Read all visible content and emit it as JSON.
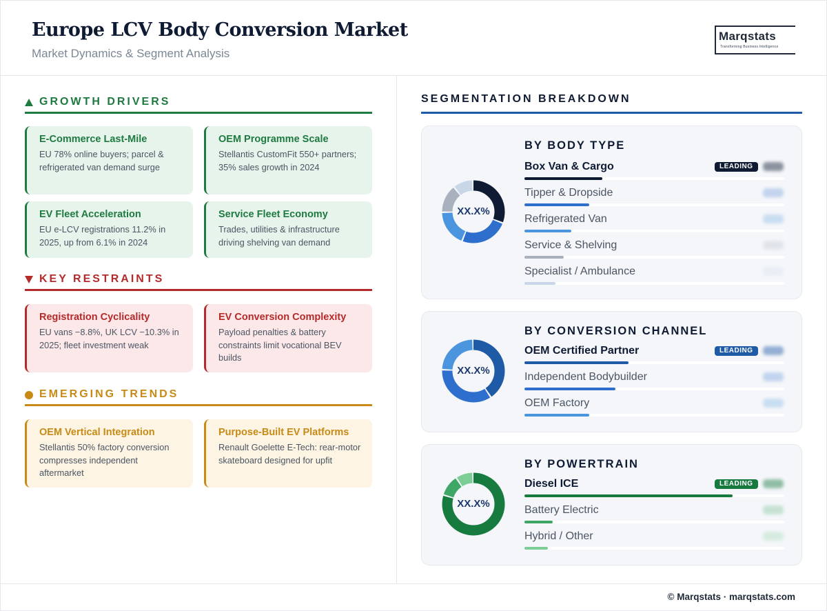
{
  "header": {
    "title": "Europe LCV Body Conversion Market",
    "subtitle": "Market Dynamics & Segment Analysis",
    "logo_name": "Marqstats",
    "logo_tagline": "Transforming Business Intelligence"
  },
  "growth_drivers": {
    "heading": "GROWTH DRIVERS",
    "color": "#1e7a40",
    "cards": [
      {
        "title": "E-Commerce Last-Mile",
        "text": "EU 78% online buyers; parcel & refrigerated van demand surge"
      },
      {
        "title": "OEM Programme Scale",
        "text": "Stellantis CustomFit 550+ partners; 35% sales growth in 2024"
      },
      {
        "title": "EV Fleet Acceleration",
        "text": "EU e-LCV registrations 11.2% in 2025, up from 6.1% in 2024"
      },
      {
        "title": "Service Fleet Economy",
        "text": "Trades, utilities & infrastructure driving shelving van demand"
      }
    ]
  },
  "key_restraints": {
    "heading": "KEY RESTRAINTS",
    "color": "#b42a2a",
    "cards": [
      {
        "title": "Registration Cyclicality",
        "text": "EU vans −8.8%, UK LCV −10.3% in 2025; fleet investment weak"
      },
      {
        "title": "EV Conversion Complexity",
        "text": "Payload penalties & battery constraints limit vocational BEV builds"
      }
    ]
  },
  "emerging_trends": {
    "heading": "EMERGING TRENDS",
    "color": "#c88a16",
    "cards": [
      {
        "title": "OEM Vertical Integration",
        "text": "Stellantis 50% factory conversion compresses independent aftermarket"
      },
      {
        "title": "Purpose-Built EV Platforms",
        "text": "Renault Goelette E-Tech: rear-motor skateboard designed for upfit"
      }
    ]
  },
  "segmentation": {
    "heading": "SEGMENTATION BREAKDOWN",
    "leading_label": "LEADING"
  },
  "chart_data": [
    {
      "type": "pie",
      "title": "BY BODY TYPE",
      "center_label": "XX.X%",
      "categories": [
        "Box Van & Cargo",
        "Tipper & Dropside",
        "Refrigerated Van",
        "Service & Shelving",
        "Specialist / Ambulance"
      ],
      "values": [
        30,
        24,
        18,
        14,
        10
      ],
      "bar_fraction": [
        0.3,
        0.25,
        0.18,
        0.15,
        0.12
      ],
      "colors": [
        "#0f1b33",
        "#2e6fce",
        "#4a95de",
        "#a8b1bd",
        "#c9d6e8"
      ],
      "leading": "Box Van & Cargo"
    },
    {
      "type": "pie",
      "title": "BY CONVERSION CHANNEL",
      "center_label": "XX.X%",
      "categories": [
        "OEM Certified Partner",
        "Independent Bodybuilder",
        "OEM Factory"
      ],
      "values": [
        41,
        35,
        24
      ],
      "bar_fraction": [
        0.4,
        0.35,
        0.25
      ],
      "colors": [
        "#1f5aa6",
        "#2e6fce",
        "#4a95de"
      ],
      "leading": "OEM Certified Partner"
    },
    {
      "type": "pie",
      "title": "BY POWERTRAIN",
      "center_label": "XX.X%",
      "categories": [
        "Diesel ICE",
        "Battery Electric",
        "Hybrid / Other"
      ],
      "values": [
        80,
        11,
        9
      ],
      "bar_fraction": [
        0.8,
        0.11,
        0.09
      ],
      "colors": [
        "#177a3f",
        "#3fa766",
        "#7ccd96"
      ],
      "leading": "Diesel ICE"
    }
  ],
  "footer": {
    "text": "© Marqstats · marqstats.com"
  }
}
